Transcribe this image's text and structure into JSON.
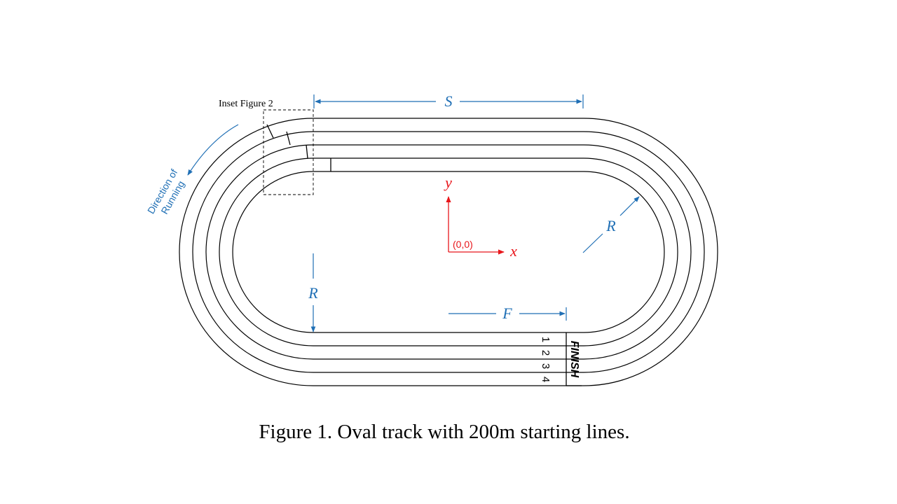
{
  "figure": {
    "inset_label": "Inset Figure  2",
    "straight_length_label": "S",
    "radius_label_inner": "R",
    "radius_label_outer": "R",
    "finish_offset_label": "F",
    "axis_x_label": "x",
    "axis_y_label": "y",
    "origin_label": "(0,0)",
    "direction_label_line1": "Direction of",
    "direction_label_line2": "Running",
    "finish_label": "FINISH",
    "lane_numbers": [
      "1",
      "2",
      "3",
      "4"
    ],
    "caption": "Figure 1.  Oval track with 200m starting lines."
  },
  "colors": {
    "dimension_blue": "#1f6fb5",
    "axis_red": "#e8161b",
    "track_black": "#000000"
  }
}
